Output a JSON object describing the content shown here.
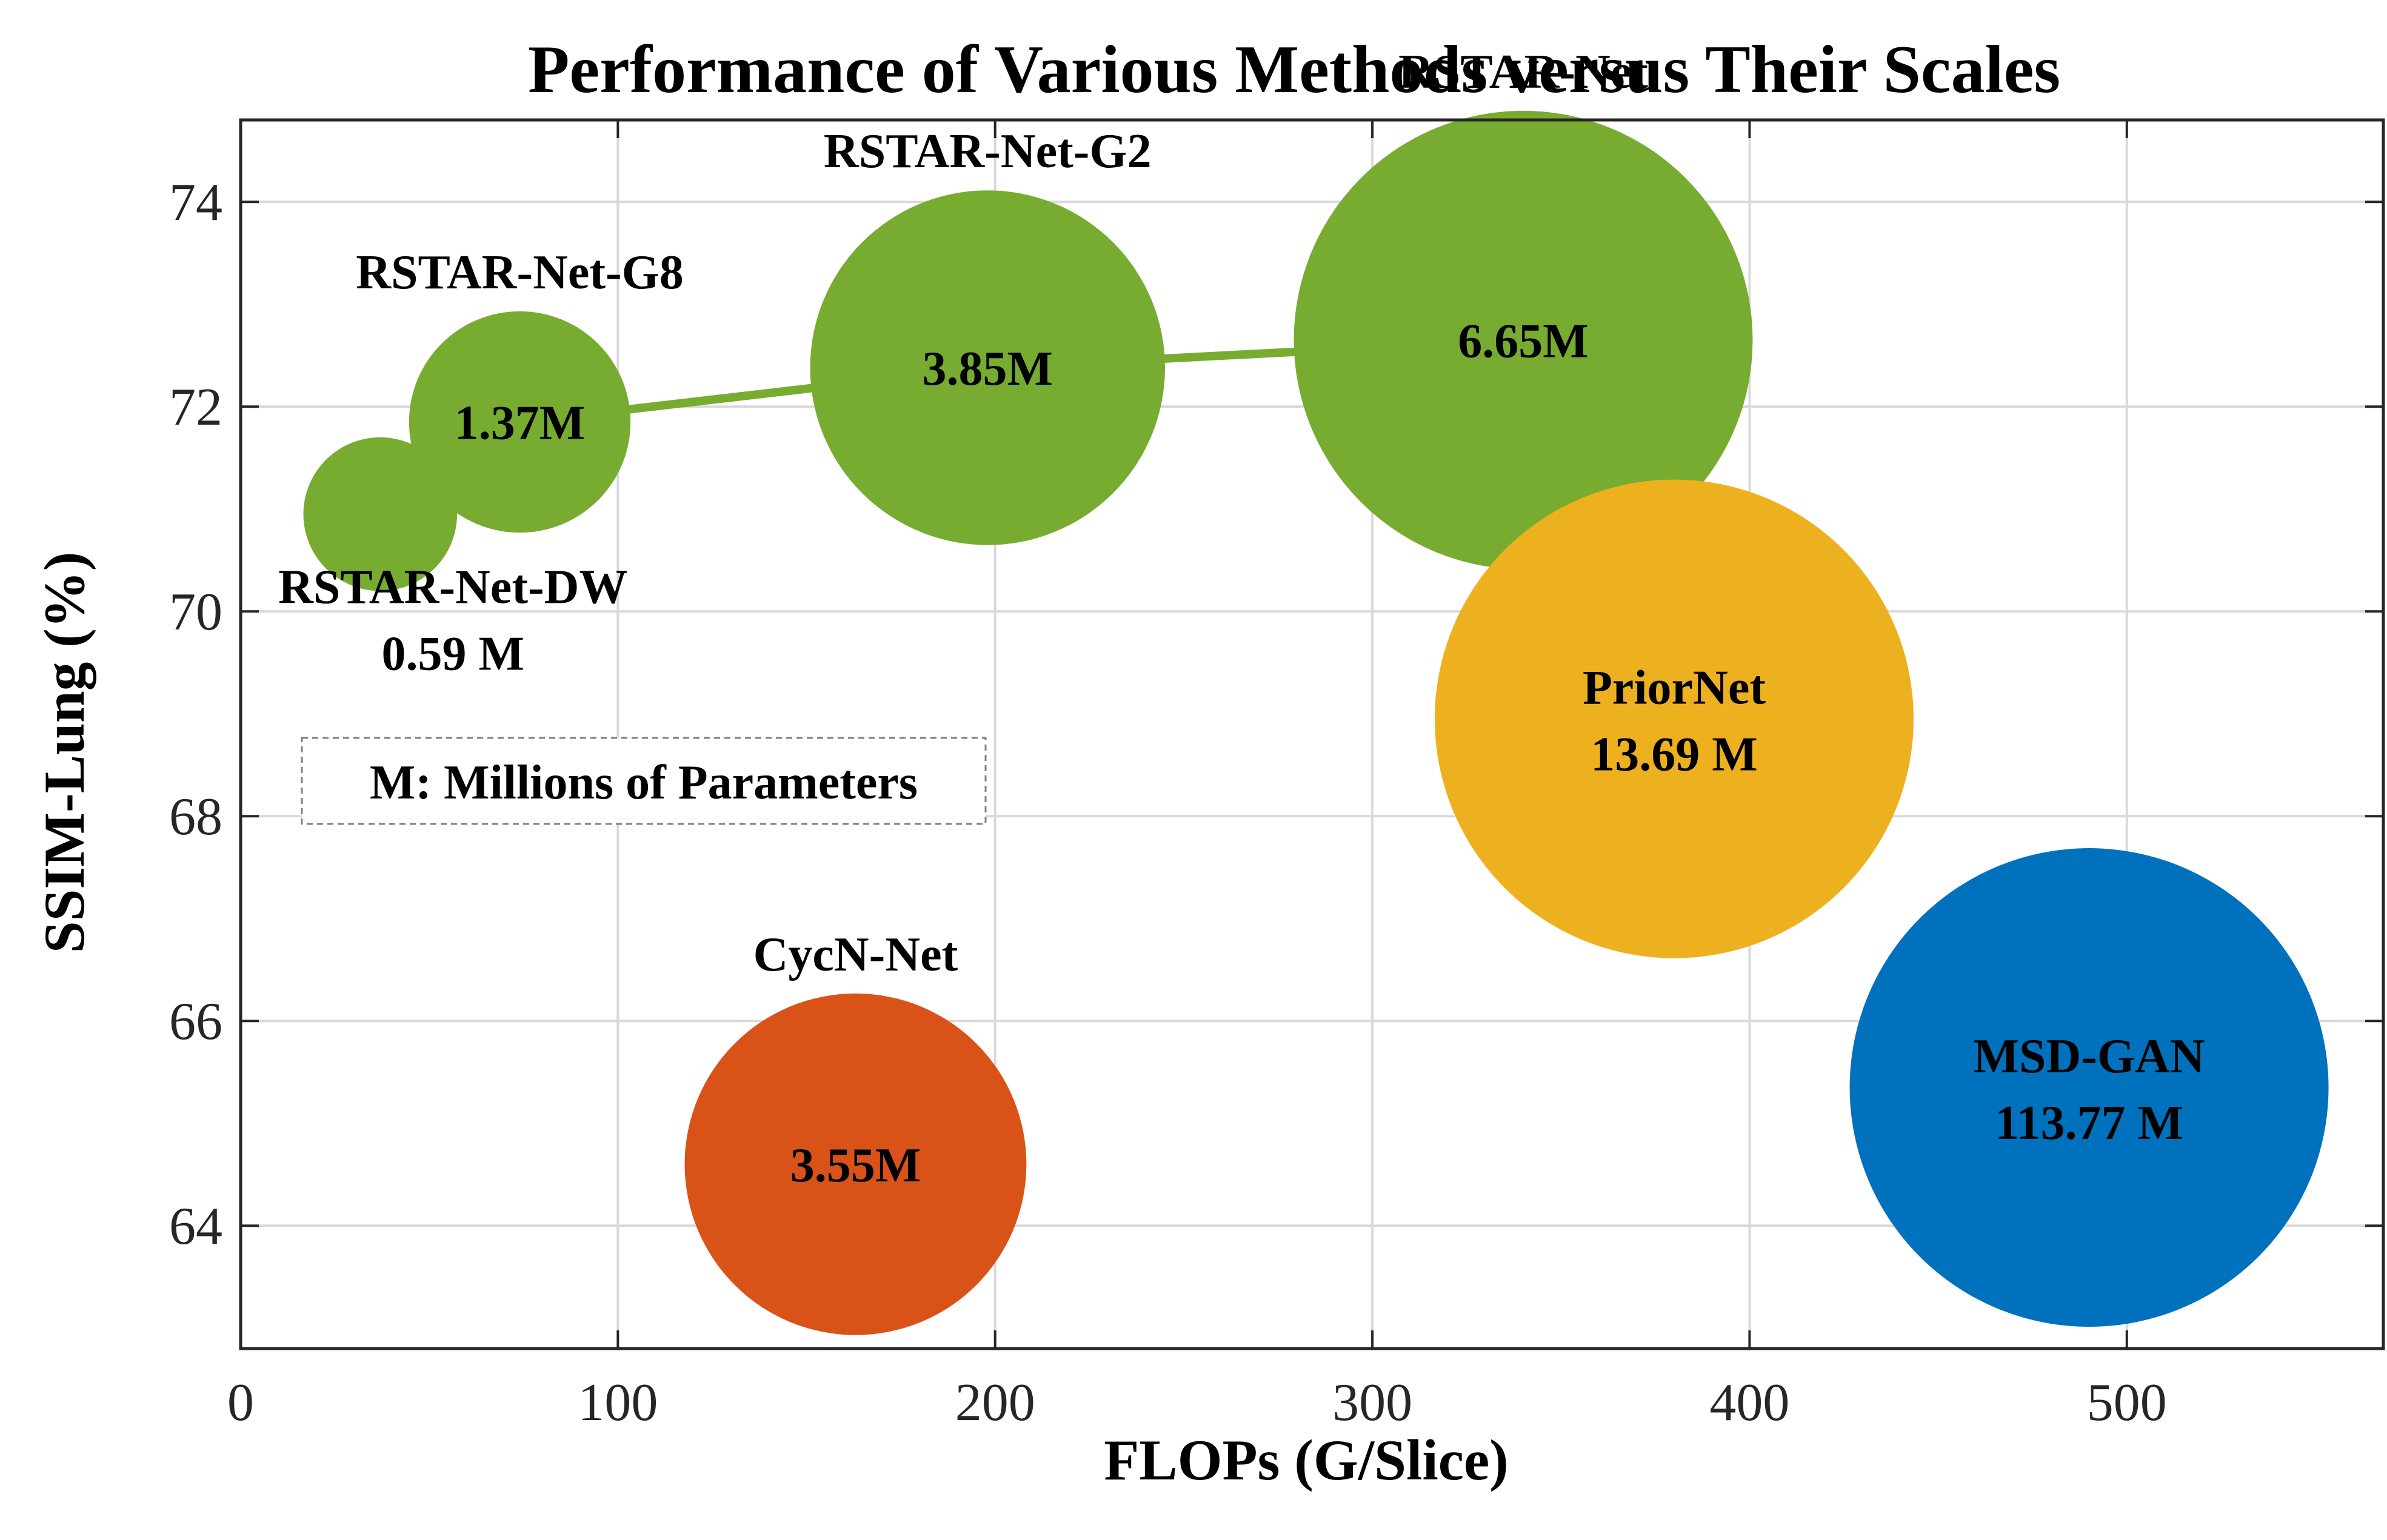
{
  "chart_data": {
    "type": "scatter",
    "variant": "bubble",
    "title": "Performance of Various Methods versus Their Scales",
    "xlabel": "FLOPs (G/Slice)",
    "ylabel": "SSIM-Lung (%)",
    "xlim": [
      0,
      568
    ],
    "ylim": [
      62.8,
      74.8
    ],
    "xticks": [
      0,
      100,
      200,
      300,
      400,
      500
    ],
    "yticks": [
      64,
      66,
      68,
      70,
      72,
      74
    ],
    "grid": true,
    "note": "M: Millions of Parameters",
    "colors": {
      "rstar": "#77AC30",
      "priornet": "#EDB120",
      "cycn": "#D95319",
      "msd": "#0072BD",
      "grid": "#d9d9d9",
      "axis": "#262626"
    },
    "points": [
      {
        "name": "RSTAR-Net-DW",
        "params_label": "0.59 M",
        "params": 0.59,
        "x": 37,
        "y": 70.95,
        "color": "#77AC30"
      },
      {
        "name": "RSTAR-Net-G8",
        "params_label": "1.37M",
        "params": 1.37,
        "x": 74,
        "y": 71.85,
        "color": "#77AC30"
      },
      {
        "name": "RSTAR-Net-G2",
        "params_label": "3.85M",
        "params": 3.85,
        "x": 198,
        "y": 72.38,
        "color": "#77AC30"
      },
      {
        "name": "RSTAR-Net",
        "params_label": "6.65M",
        "params": 6.65,
        "x": 340,
        "y": 72.65,
        "color": "#77AC30"
      },
      {
        "name": "PriorNet",
        "params_label": "13.69 M",
        "params": 13.69,
        "x": 380,
        "y": 68.95,
        "color": "#EDB120"
      },
      {
        "name": "CycN-Net",
        "params_label": "3.55M",
        "params": 3.55,
        "x": 163,
        "y": 64.6,
        "color": "#D95319"
      },
      {
        "name": "MSD-GAN",
        "params_label": "113.77 M",
        "params": 113.77,
        "x": 490,
        "y": 65.35,
        "color": "#0072BD"
      }
    ],
    "connected_series": [
      "RSTAR-Net-DW",
      "RSTAR-Net-G8",
      "RSTAR-Net-G2",
      "RSTAR-Net"
    ]
  }
}
